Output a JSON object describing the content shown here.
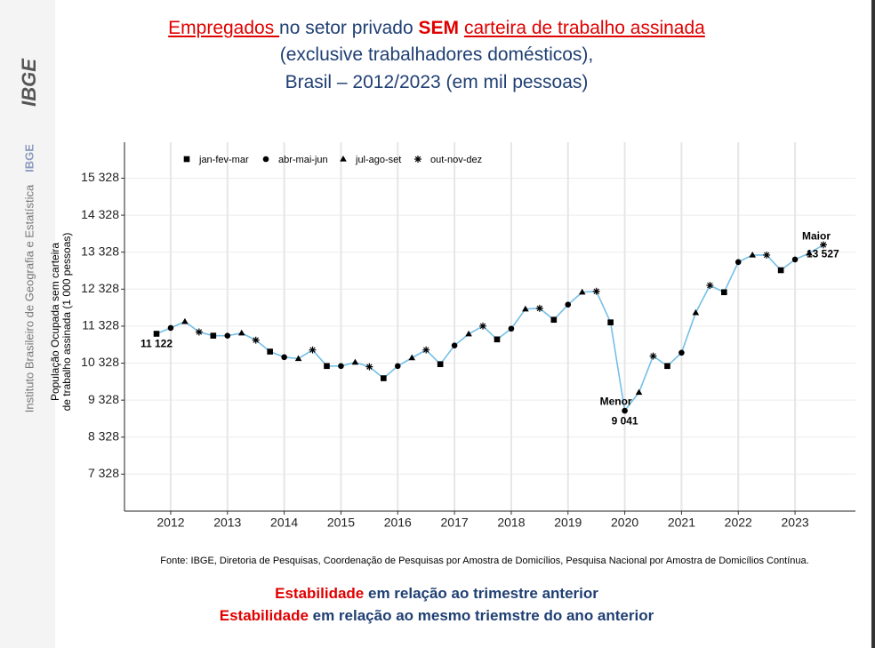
{
  "sidebar": {
    "logo": "IBGE",
    "institute": "Instituto Brasileiro de Geografia e Estatística",
    "short": "IBGE"
  },
  "chart_data": {
    "type": "line",
    "title_parts": [
      "Empregados ",
      "no setor privado ",
      "SEM",
      "carteira de trabalho assinada"
    ],
    "subtitle": [
      "(exclusive trabalhadores domésticos),",
      "Brasil – 2012/2023 (em mil pessoas)"
    ],
    "ylabel": [
      "População Ocupada sem carteira",
      "de trabalho assinada (1 000 pessoas)"
    ],
    "categories": [
      null,
      "2012",
      null,
      null,
      null,
      "2013",
      null,
      null,
      null,
      "2014",
      null,
      null,
      null,
      "2015",
      null,
      null,
      null,
      "2016",
      null,
      null,
      null,
      "2017",
      null,
      null,
      null,
      "2018",
      null,
      null,
      null,
      "2019",
      null,
      null,
      null,
      "2020",
      null,
      null,
      null,
      "2021",
      null,
      null,
      null,
      "2022",
      null,
      null,
      null,
      "2023",
      null,
      null
    ],
    "values": [
      11122,
      11280,
      11450,
      11170,
      11070,
      11070,
      11140,
      10950,
      10640,
      10490,
      10450,
      10685,
      10250,
      10250,
      10350,
      10230,
      9920,
      10250,
      10470,
      10685,
      10300,
      10805,
      11115,
      11330,
      10970,
      11260,
      11790,
      11810,
      11500,
      11910,
      12245,
      12270,
      11430,
      9041,
      9535,
      10520,
      10250,
      10610,
      11690,
      12430,
      12245,
      13060,
      13250,
      13250,
      12840,
      13130,
      13300,
      13527
    ],
    "value_labels": [
      "11 122",
      null,
      null,
      null,
      null,
      null,
      null,
      null,
      null,
      null,
      null,
      null,
      null,
      null,
      null,
      null,
      null,
      null,
      null,
      null,
      null,
      null,
      null,
      null,
      null,
      null,
      null,
      null,
      null,
      null,
      null,
      null,
      null,
      "9 041",
      null,
      null,
      null,
      null,
      null,
      null,
      null,
      null,
      null,
      null,
      null,
      null,
      null,
      "13 527"
    ],
    "min_label": "Menor",
    "max_label": "Maior",
    "color": "#74bfe6",
    "marker_color": "#000000",
    "markers": [
      {
        "name": "jan-fev-mar",
        "shape": "square"
      },
      {
        "name": "abr-mai-jun",
        "shape": "circle"
      },
      {
        "name": "jul-ago-set",
        "shape": "triangle"
      },
      {
        "name": "out-nov-dez",
        "shape": "asterisk"
      }
    ],
    "ylim": [
      6328,
      16300
    ],
    "yticks": [
      {
        "value": 7328,
        "label": "7 328"
      },
      {
        "value": 8328,
        "label": "8 328"
      },
      {
        "value": 9328,
        "label": "9 328"
      },
      {
        "value": 10328,
        "label": "10 328"
      },
      {
        "value": 11328,
        "label": "11 328"
      },
      {
        "value": 12328,
        "label": "12 328"
      },
      {
        "value": 13328,
        "label": "13 328"
      },
      {
        "value": 14328,
        "label": "14 328"
      },
      {
        "value": 15328,
        "label": "15 328"
      }
    ],
    "grid": true,
    "source": "Fonte: IBGE, Diretoria de Pesquisas, Coordenação de Pesquisas por Amostra de Domicílios, Pesquisa Nacional por Amostra de Domicílios Contínua."
  },
  "footer": [
    {
      "highlight": "Estabilidade",
      "text": "em relação ao trimestre anterior"
    },
    {
      "highlight": "Estabilidade",
      "text": "em relação ao mesmo triemstre do ano anterior"
    }
  ]
}
